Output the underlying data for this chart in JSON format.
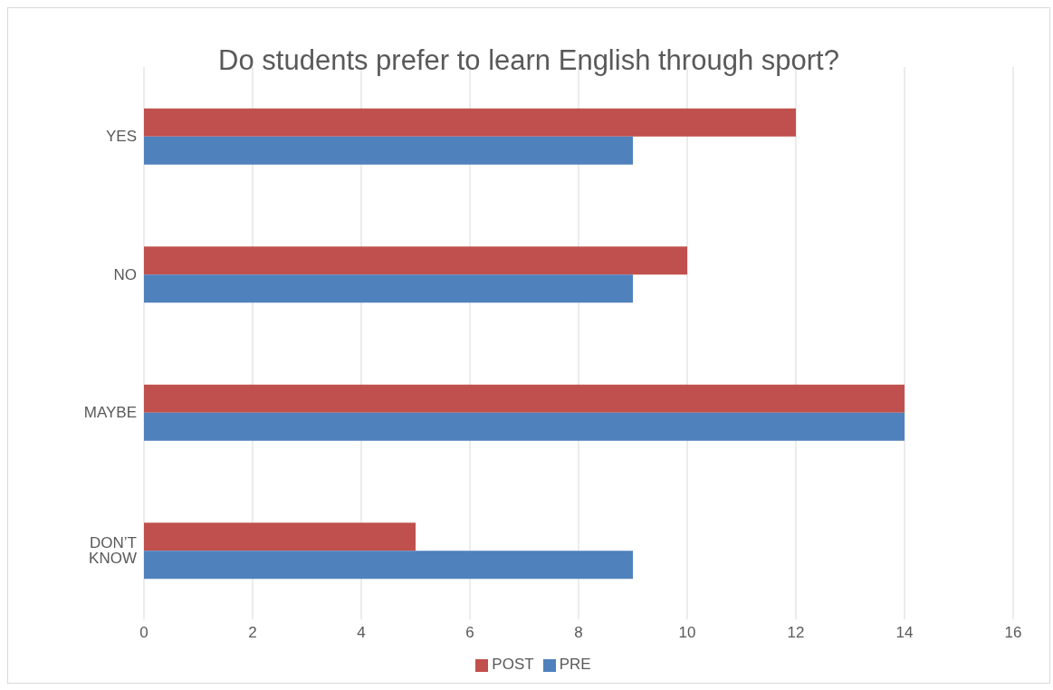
{
  "chart_data": {
    "type": "bar",
    "orientation": "horizontal",
    "title": "Do students prefer to learn English through sport?",
    "categories": [
      "YES",
      "NO",
      "MAYBE",
      "DON’T KNOW"
    ],
    "series": [
      {
        "name": "POST",
        "color": "#c0504d",
        "values": [
          12,
          10,
          14,
          5
        ]
      },
      {
        "name": "PRE",
        "color": "#4f81bd",
        "values": [
          9,
          9,
          14,
          9
        ]
      }
    ],
    "xlim": [
      0,
      16
    ],
    "xticks": [
      0,
      2,
      4,
      6,
      8,
      10,
      12,
      14,
      16
    ],
    "grid": "x",
    "legend": "bottom"
  }
}
